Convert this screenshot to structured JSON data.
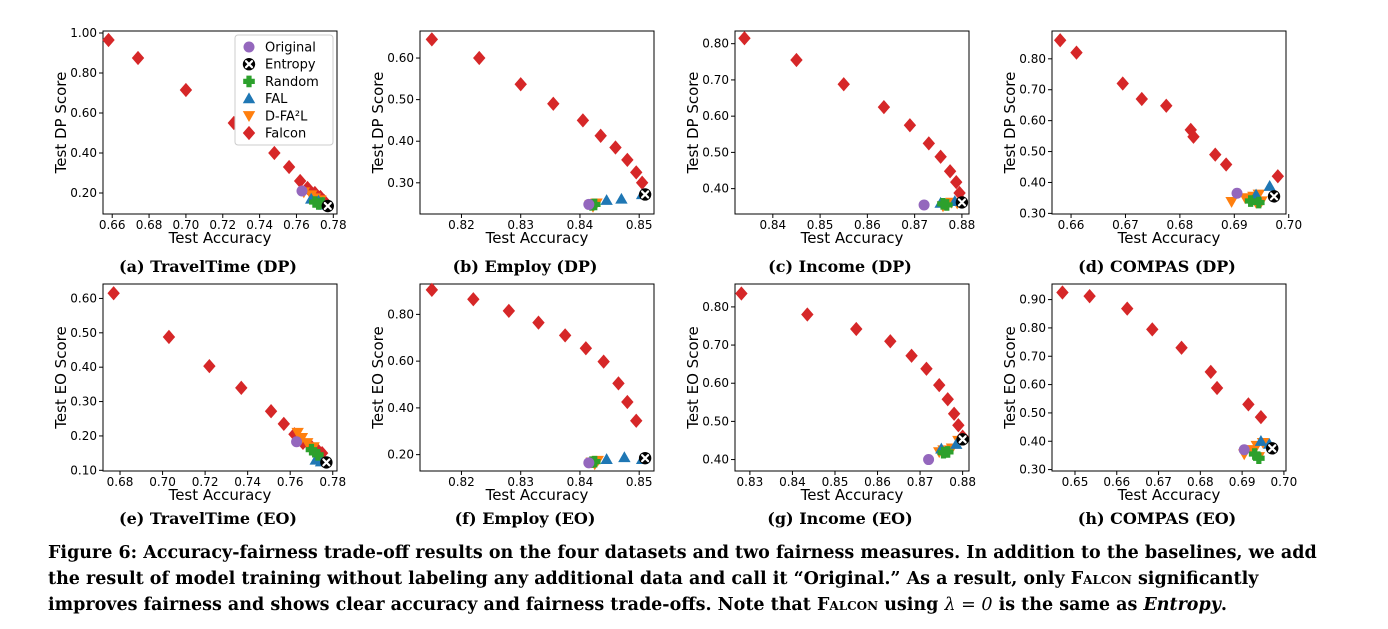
{
  "caption": {
    "prefix": "Figure 6: Accuracy-fairness trade-off results on the four datasets and two fairness measures. In addition to the baselines, we add the result of model training without labeling any additional data and call it “Original.” As a result, only ",
    "falcon1": "Falcon",
    "middle": " significantly improves fairness and shows clear accuracy and fairness trade-offs. Note that ",
    "falcon2": "Falcon",
    "using": " using ",
    "lambda_expr": "λ = 0",
    "is_same": " is the same as ",
    "entropy": "Entropy",
    "period": "."
  },
  "legend": [
    {
      "name": "Original",
      "marker": "circle",
      "color": "#9467bd"
    },
    {
      "name": "Entropy",
      "marker": "xcircle",
      "color": "#000000"
    },
    {
      "name": "Random",
      "marker": "plus",
      "color": "#2ca02c"
    },
    {
      "name": "FAL",
      "marker": "triangle-up",
      "color": "#1f77b4"
    },
    {
      "name": "D-FA²L",
      "marker": "triangle-down",
      "color": "#ff7f0e"
    },
    {
      "name": "Falcon",
      "marker": "diamond",
      "color": "#d62728"
    }
  ],
  "chart_data": [
    {
      "type": "scatter",
      "title": "(a) TravelTime (DP)",
      "xlabel": "Test Accuracy",
      "ylabel": "Test DP Score",
      "xlim": [
        0.655,
        0.782
      ],
      "ylim": [
        0.095,
        1.01
      ],
      "xticks": [
        0.66,
        0.68,
        0.7,
        0.72,
        0.74,
        0.76,
        0.78
      ],
      "yticks": [
        0.2,
        0.4,
        0.6,
        0.8,
        1.0
      ],
      "xdec": 2,
      "ydec": 2,
      "legend": "top-right",
      "series": {
        "Falcon": [
          [
            0.658,
            0.965
          ],
          [
            0.674,
            0.875
          ],
          [
            0.7,
            0.715
          ],
          [
            0.726,
            0.55
          ],
          [
            0.748,
            0.4
          ],
          [
            0.756,
            0.33
          ],
          [
            0.762,
            0.26
          ],
          [
            0.766,
            0.225
          ],
          [
            0.77,
            0.2
          ],
          [
            0.773,
            0.18
          ],
          [
            0.775,
            0.16
          ]
        ],
        "D-FA²L": [
          [
            0.764,
            0.205
          ],
          [
            0.768,
            0.19
          ],
          [
            0.77,
            0.175
          ],
          [
            0.773,
            0.165
          ],
          [
            0.771,
            0.155
          ]
        ],
        "FAL": [
          [
            0.768,
            0.17
          ],
          [
            0.772,
            0.16
          ],
          [
            0.774,
            0.15
          ],
          [
            0.775,
            0.14
          ]
        ],
        "Random": [
          [
            0.77,
            0.155
          ],
          [
            0.772,
            0.145
          ],
          [
            0.774,
            0.15
          ]
        ],
        "Original": [
          [
            0.763,
            0.21
          ]
        ],
        "Entropy": [
          [
            0.777,
            0.135
          ]
        ]
      }
    },
    {
      "type": "scatter",
      "title": "(b) Employ (DP)",
      "xlabel": "Test Accuracy",
      "ylabel": "Test DP Score",
      "xlim": [
        0.813,
        0.8525
      ],
      "ylim": [
        0.225,
        0.665
      ],
      "xticks": [
        0.82,
        0.83,
        0.84,
        0.85
      ],
      "yticks": [
        0.3,
        0.4,
        0.5,
        0.6
      ],
      "xdec": 2,
      "ydec": 2,
      "series": {
        "Falcon": [
          [
            0.815,
            0.645
          ],
          [
            0.823,
            0.6
          ],
          [
            0.83,
            0.537
          ],
          [
            0.8355,
            0.49
          ],
          [
            0.8405,
            0.45
          ],
          [
            0.8435,
            0.413
          ],
          [
            0.846,
            0.385
          ],
          [
            0.848,
            0.355
          ],
          [
            0.8495,
            0.325
          ],
          [
            0.8505,
            0.3
          ]
        ],
        "FAL": [
          [
            0.8445,
            0.258
          ],
          [
            0.847,
            0.261
          ],
          [
            0.8505,
            0.272
          ]
        ],
        "D-FA²L": [
          [
            0.8422,
            0.243
          ],
          [
            0.8428,
            0.251
          ],
          [
            0.8418,
            0.247
          ]
        ],
        "Random": [
          [
            0.842,
            0.247
          ],
          [
            0.8425,
            0.248
          ]
        ],
        "Original": [
          [
            0.8415,
            0.248
          ]
        ],
        "Entropy": [
          [
            0.851,
            0.272
          ]
        ]
      }
    },
    {
      "type": "scatter",
      "title": "(c) Income (DP)",
      "xlabel": "Test Accuracy",
      "ylabel": "Test DP Score",
      "xlim": [
        0.832,
        0.8815
      ],
      "ylim": [
        0.33,
        0.835
      ],
      "xticks": [
        0.84,
        0.85,
        0.86,
        0.87,
        0.88
      ],
      "yticks": [
        0.4,
        0.5,
        0.6,
        0.7,
        0.8
      ],
      "xdec": 2,
      "ydec": 2,
      "series": {
        "Falcon": [
          [
            0.834,
            0.815
          ],
          [
            0.845,
            0.755
          ],
          [
            0.855,
            0.688
          ],
          [
            0.8635,
            0.625
          ],
          [
            0.869,
            0.575
          ],
          [
            0.873,
            0.525
          ],
          [
            0.8755,
            0.488
          ],
          [
            0.8775,
            0.448
          ],
          [
            0.8788,
            0.418
          ],
          [
            0.8795,
            0.388
          ],
          [
            0.88,
            0.365
          ]
        ],
        "D-FA²L": [
          [
            0.876,
            0.352
          ],
          [
            0.877,
            0.358
          ],
          [
            0.8778,
            0.362
          ],
          [
            0.879,
            0.36
          ]
        ],
        "FAL": [
          [
            0.8755,
            0.36
          ],
          [
            0.8785,
            0.365
          ]
        ],
        "Random": [
          [
            0.876,
            0.358
          ],
          [
            0.8768,
            0.355
          ]
        ],
        "Original": [
          [
            0.872,
            0.355
          ]
        ],
        "Entropy": [
          [
            0.88,
            0.362
          ]
        ]
      }
    },
    {
      "type": "scatter",
      "title": "(d) COMPAS (DP)",
      "xlabel": "Test Accuracy",
      "ylabel": "Test DP Score",
      "xlim": [
        0.6565,
        0.6995
      ],
      "ylim": [
        0.298,
        0.89
      ],
      "xticks": [
        0.66,
        0.67,
        0.68,
        0.69,
        0.7
      ],
      "yticks": [
        0.3,
        0.4,
        0.5,
        0.6,
        0.7,
        0.8
      ],
      "xdec": 2,
      "ydec": 2,
      "series": {
        "Falcon": [
          [
            0.658,
            0.86
          ],
          [
            0.661,
            0.82
          ],
          [
            0.6695,
            0.72
          ],
          [
            0.673,
            0.67
          ],
          [
            0.6775,
            0.648
          ],
          [
            0.682,
            0.57
          ],
          [
            0.6825,
            0.548
          ],
          [
            0.6865,
            0.49
          ],
          [
            0.6885,
            0.458
          ],
          [
            0.698,
            0.42
          ]
        ],
        "D-FA²L": [
          [
            0.6895,
            0.338
          ],
          [
            0.692,
            0.35
          ],
          [
            0.6935,
            0.355
          ],
          [
            0.6945,
            0.362
          ],
          [
            0.695,
            0.34
          ],
          [
            0.694,
            0.335
          ]
        ],
        "FAL": [
          [
            0.6965,
            0.388
          ],
          [
            0.694,
            0.36
          ]
        ],
        "Random": [
          [
            0.693,
            0.34
          ],
          [
            0.6945,
            0.335
          ]
        ],
        "Original": [
          [
            0.6905,
            0.365
          ]
        ],
        "Entropy": [
          [
            0.6973,
            0.355
          ]
        ]
      }
    },
    {
      "type": "scatter",
      "title": "(e) TravelTime (EO)",
      "xlabel": "Test Accuracy",
      "ylabel": "Test EO Score",
      "xlim": [
        0.672,
        0.782
      ],
      "ylim": [
        0.098,
        0.642
      ],
      "xticks": [
        0.68,
        0.7,
        0.72,
        0.74,
        0.76,
        0.78
      ],
      "yticks": [
        0.1,
        0.2,
        0.3,
        0.4,
        0.5,
        0.6
      ],
      "xdec": 2,
      "ydec": 2,
      "series": {
        "Falcon": [
          [
            0.677,
            0.615
          ],
          [
            0.703,
            0.488
          ],
          [
            0.722,
            0.403
          ],
          [
            0.737,
            0.34
          ],
          [
            0.751,
            0.272
          ],
          [
            0.757,
            0.235
          ],
          [
            0.762,
            0.205
          ],
          [
            0.766,
            0.18
          ],
          [
            0.77,
            0.168
          ],
          [
            0.773,
            0.158
          ],
          [
            0.775,
            0.15
          ]
        ],
        "D-FA²L": [
          [
            0.7635,
            0.21
          ],
          [
            0.7655,
            0.195
          ],
          [
            0.768,
            0.18
          ],
          [
            0.771,
            0.168
          ]
        ],
        "FAL": [
          [
            0.772,
            0.13
          ],
          [
            0.7745,
            0.125
          ]
        ],
        "Random": [
          [
            0.77,
            0.16
          ],
          [
            0.773,
            0.145
          ]
        ],
        "Original": [
          [
            0.763,
            0.183
          ]
        ],
        "Entropy": [
          [
            0.777,
            0.123
          ]
        ]
      }
    },
    {
      "type": "scatter",
      "title": "(f) Employ (EO)",
      "xlabel": "Test Accuracy",
      "ylabel": "Test EO Score",
      "xlim": [
        0.813,
        0.8525
      ],
      "ylim": [
        0.13,
        0.93
      ],
      "xticks": [
        0.82,
        0.83,
        0.84,
        0.85
      ],
      "yticks": [
        0.2,
        0.4,
        0.6,
        0.8
      ],
      "xdec": 2,
      "ydec": 2,
      "series": {
        "Falcon": [
          [
            0.815,
            0.905
          ],
          [
            0.822,
            0.865
          ],
          [
            0.828,
            0.815
          ],
          [
            0.833,
            0.765
          ],
          [
            0.8375,
            0.71
          ],
          [
            0.841,
            0.655
          ],
          [
            0.844,
            0.598
          ],
          [
            0.8465,
            0.505
          ],
          [
            0.848,
            0.425
          ],
          [
            0.8495,
            0.345
          ]
        ],
        "FAL": [
          [
            0.8445,
            0.18
          ],
          [
            0.8475,
            0.188
          ],
          [
            0.8505,
            0.18
          ]
        ],
        "D-FA²L": [
          [
            0.8425,
            0.16
          ],
          [
            0.843,
            0.175
          ],
          [
            0.842,
            0.168
          ]
        ],
        "Random": [
          [
            0.842,
            0.168
          ],
          [
            0.8425,
            0.17
          ]
        ],
        "Original": [
          [
            0.8415,
            0.165
          ]
        ],
        "Entropy": [
          [
            0.851,
            0.185
          ]
        ]
      }
    },
    {
      "type": "scatter",
      "title": "(g) Income (EO)",
      "xlabel": "Test Accuracy",
      "ylabel": "Test EO Score",
      "xlim": [
        0.8265,
        0.8815
      ],
      "ylim": [
        0.37,
        0.86
      ],
      "xticks": [
        0.83,
        0.84,
        0.85,
        0.86,
        0.87,
        0.88
      ],
      "yticks": [
        0.4,
        0.5,
        0.6,
        0.7,
        0.8
      ],
      "xdec": 2,
      "ydec": 2,
      "series": {
        "Falcon": [
          [
            0.828,
            0.835
          ],
          [
            0.8435,
            0.78
          ],
          [
            0.855,
            0.742
          ],
          [
            0.863,
            0.71
          ],
          [
            0.868,
            0.672
          ],
          [
            0.8715,
            0.638
          ],
          [
            0.8745,
            0.595
          ],
          [
            0.8765,
            0.558
          ],
          [
            0.878,
            0.52
          ],
          [
            0.879,
            0.49
          ],
          [
            0.88,
            0.46
          ]
        ],
        "D-FA²L": [
          [
            0.8745,
            0.42
          ],
          [
            0.8755,
            0.425
          ],
          [
            0.8775,
            0.43
          ],
          [
            0.879,
            0.45
          ]
        ],
        "FAL": [
          [
            0.875,
            0.428
          ],
          [
            0.8785,
            0.44
          ]
        ],
        "Random": [
          [
            0.8755,
            0.418
          ],
          [
            0.8765,
            0.42
          ]
        ],
        "Original": [
          [
            0.872,
            0.4
          ]
        ],
        "Entropy": [
          [
            0.88,
            0.453
          ]
        ]
      }
    },
    {
      "type": "scatter",
      "title": "(h) COMPAS (EO)",
      "xlabel": "Test Accuracy",
      "ylabel": "Test EO Score",
      "xlim": [
        0.6445,
        0.7005
      ],
      "ylim": [
        0.295,
        0.955
      ],
      "xticks": [
        0.65,
        0.66,
        0.67,
        0.68,
        0.69,
        0.7
      ],
      "yticks": [
        0.3,
        0.4,
        0.5,
        0.6,
        0.7,
        0.8,
        0.9
      ],
      "xdec": 2,
      "ydec": 2,
      "series": {
        "Falcon": [
          [
            0.647,
            0.925
          ],
          [
            0.6535,
            0.912
          ],
          [
            0.6625,
            0.868
          ],
          [
            0.6685,
            0.795
          ],
          [
            0.6755,
            0.73
          ],
          [
            0.6825,
            0.645
          ],
          [
            0.684,
            0.588
          ],
          [
            0.6915,
            0.53
          ],
          [
            0.6945,
            0.485
          ]
        ],
        "D-FA²L": [
          [
            0.6905,
            0.355
          ],
          [
            0.692,
            0.37
          ],
          [
            0.6935,
            0.385
          ],
          [
            0.695,
            0.395
          ],
          [
            0.694,
            0.345
          ]
        ],
        "FAL": [
          [
            0.6945,
            0.4
          ],
          [
            0.6965,
            0.39
          ]
        ],
        "Random": [
          [
            0.693,
            0.355
          ],
          [
            0.694,
            0.34
          ]
        ],
        "Original": [
          [
            0.6905,
            0.37
          ]
        ],
        "Entropy": [
          [
            0.6972,
            0.375
          ]
        ]
      }
    }
  ]
}
